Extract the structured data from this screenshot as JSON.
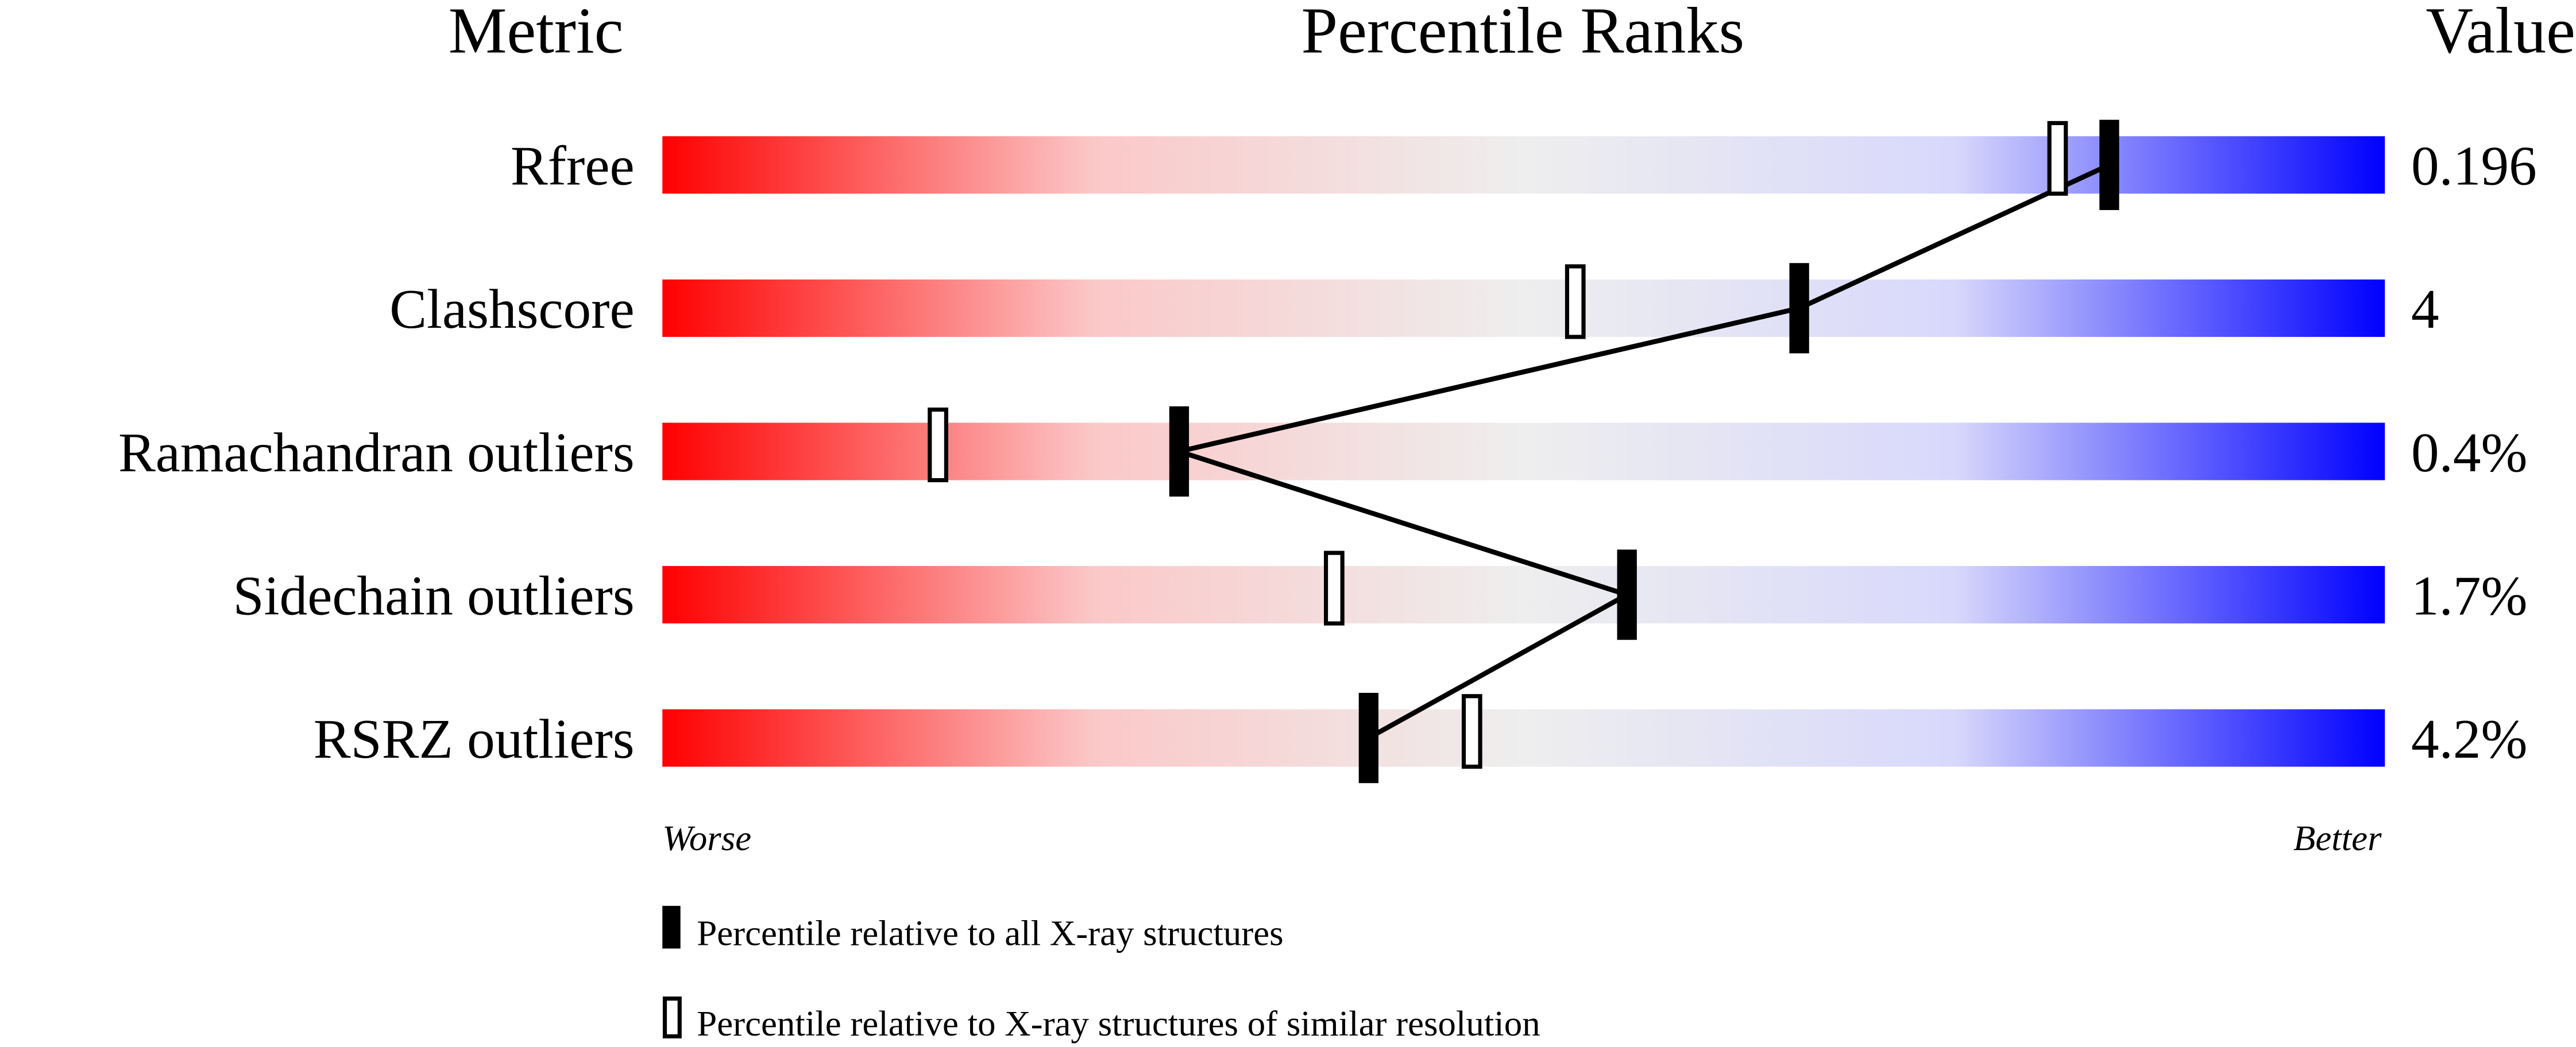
{
  "chart_data": {
    "type": "bar",
    "headers": {
      "metric": "Metric",
      "percentile": "Percentile Ranks",
      "value": "Value"
    },
    "xlim": [
      0,
      100
    ],
    "axis_labels": {
      "left": "Worse",
      "right": "Better"
    },
    "rows": [
      {
        "metric": "Rfree",
        "value": "0.196",
        "percentile_all": 84,
        "percentile_similar": 81
      },
      {
        "metric": "Clashscore",
        "value": "4",
        "percentile_all": 66,
        "percentile_similar": 53
      },
      {
        "metric": "Ramachandran outliers",
        "value": "0.4%",
        "percentile_all": 30,
        "percentile_similar": 16
      },
      {
        "metric": "Sidechain outliers",
        "value": "1.7%",
        "percentile_all": 56,
        "percentile_similar": 39
      },
      {
        "metric": "RSRZ outliers",
        "value": "4.2%",
        "percentile_all": 41,
        "percentile_similar": 47
      }
    ],
    "legend": [
      {
        "marker": "filled",
        "label": "Percentile relative to all X-ray structures"
      },
      {
        "marker": "open",
        "label": "Percentile relative to X-ray structures of similar resolution"
      }
    ],
    "gradient_colors": [
      "#ff0000",
      "#fbc8c8",
      "#eeeeee",
      "#d8d8fc",
      "#0000ff"
    ]
  }
}
